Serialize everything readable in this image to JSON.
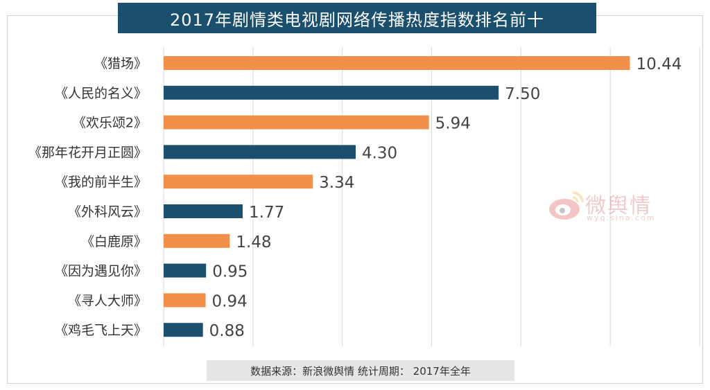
{
  "title": "2017年剧情类电视剧网络传播热度指数排名前十",
  "source": "数据来源：新浪微舆情    统计周期： 2017年全年",
  "watermark": {
    "text": "微舆情",
    "sub": "wyq.sina.com"
  },
  "colors": {
    "orange": "#f0904a",
    "navy": "#1b4f6e",
    "grid": "#d9d9d9",
    "label": "#333333"
  },
  "chart_data": {
    "type": "bar",
    "orientation": "horizontal",
    "categories": [
      "《猎场》",
      "《人民的名义》",
      "《欢乐颂2》",
      "《那年花开月正圆》",
      "《我的前半生》",
      "《外科风云》",
      "《白鹿原》",
      "《因为遇见你》",
      "《寻人大师》",
      "《鸡毛飞上天》"
    ],
    "values": [
      10.44,
      7.5,
      5.94,
      4.3,
      3.34,
      1.77,
      1.48,
      0.95,
      0.94,
      0.88
    ],
    "value_labels": [
      "10.44",
      "7.50",
      "5.94",
      "4.30",
      "3.34",
      "1.77",
      "1.48",
      "0.95",
      "0.94",
      "0.88"
    ],
    "bar_colors": [
      "orange",
      "navy",
      "orange",
      "navy",
      "orange",
      "navy",
      "orange",
      "navy",
      "orange",
      "navy"
    ],
    "xlim": [
      0,
      12
    ],
    "gridlines": [
      0,
      2,
      4,
      6,
      8,
      10,
      12
    ],
    "grid": true,
    "xlabel": "",
    "ylabel": ""
  }
}
